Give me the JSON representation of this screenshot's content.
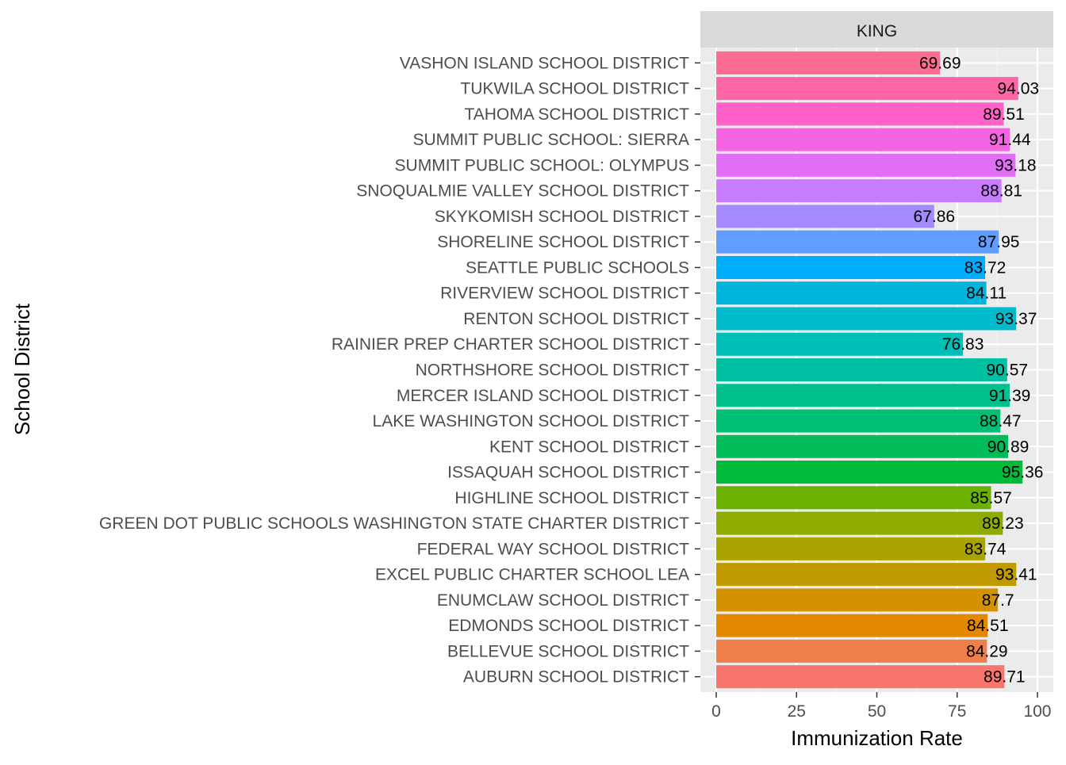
{
  "chart_data": {
    "type": "bar",
    "orientation": "horizontal",
    "facet_label": "KING",
    "title": "",
    "xlabel": "Immunization Rate",
    "ylabel": "School District",
    "xlim": [
      0,
      100
    ],
    "x_ticks": [
      0,
      25,
      50,
      75,
      100
    ],
    "x_tick_labels": [
      "0",
      "25",
      "50",
      "75",
      "100"
    ],
    "grid": true,
    "legend": "none",
    "categories": [
      "AUBURN SCHOOL DISTRICT",
      "BELLEVUE SCHOOL DISTRICT",
      "EDMONDS SCHOOL DISTRICT",
      "ENUMCLAW SCHOOL DISTRICT",
      "EXCEL PUBLIC CHARTER SCHOOL LEA",
      "FEDERAL WAY SCHOOL DISTRICT",
      "GREEN DOT PUBLIC SCHOOLS WASHINGTON STATE CHARTER DISTRICT",
      "HIGHLINE SCHOOL DISTRICT",
      "ISSAQUAH SCHOOL DISTRICT",
      "KENT SCHOOL DISTRICT",
      "LAKE WASHINGTON SCHOOL DISTRICT",
      "MERCER ISLAND SCHOOL DISTRICT",
      "NORTHSHORE SCHOOL DISTRICT",
      "RAINIER PREP CHARTER SCHOOL DISTRICT",
      "RENTON SCHOOL DISTRICT",
      "RIVERVIEW SCHOOL DISTRICT",
      "SEATTLE PUBLIC SCHOOLS",
      "SHORELINE SCHOOL DISTRICT",
      "SKYKOMISH SCHOOL DISTRICT",
      "SNOQUALMIE VALLEY SCHOOL DISTRICT",
      "SUMMIT PUBLIC SCHOOL: OLYMPUS",
      "SUMMIT PUBLIC SCHOOL: SIERRA",
      "TAHOMA SCHOOL DISTRICT",
      "TUKWILA SCHOOL DISTRICT",
      "VASHON ISLAND SCHOOL DISTRICT"
    ],
    "values": [
      89.71,
      84.29,
      84.51,
      87.7,
      93.41,
      83.74,
      89.23,
      85.57,
      95.36,
      90.89,
      88.47,
      91.39,
      90.57,
      76.83,
      93.37,
      84.11,
      83.72,
      87.95,
      67.86,
      88.81,
      93.18,
      91.44,
      89.51,
      94.03,
      69.69
    ],
    "value_labels": [
      "89.71",
      "84.29",
      "84.51",
      "87.7",
      "93.41",
      "83.74",
      "89.23",
      "85.57",
      "95.36",
      "90.89",
      "88.47",
      "91.39",
      "90.57",
      "76.83",
      "93.37",
      "84.11",
      "83.72",
      "87.95",
      "67.86",
      "88.81",
      "93.18",
      "91.44",
      "89.51",
      "94.03",
      "69.69"
    ],
    "colors": [
      "#F8766D",
      "#EF7F49",
      "#E38900",
      "#D39200",
      "#C09B00",
      "#A9A400",
      "#8EAB00",
      "#6BB100",
      "#00BA38",
      "#00BC59",
      "#00BF75",
      "#00C08D",
      "#00C0A3",
      "#00BFB8",
      "#00BBCB",
      "#00B5DC",
      "#00ADFA",
      "#619CFF",
      "#A58AFF",
      "#C77CFF",
      "#E36EF6",
      "#F564E3",
      "#FF61C9",
      "#FF66A8",
      "#FF6C91"
    ]
  }
}
